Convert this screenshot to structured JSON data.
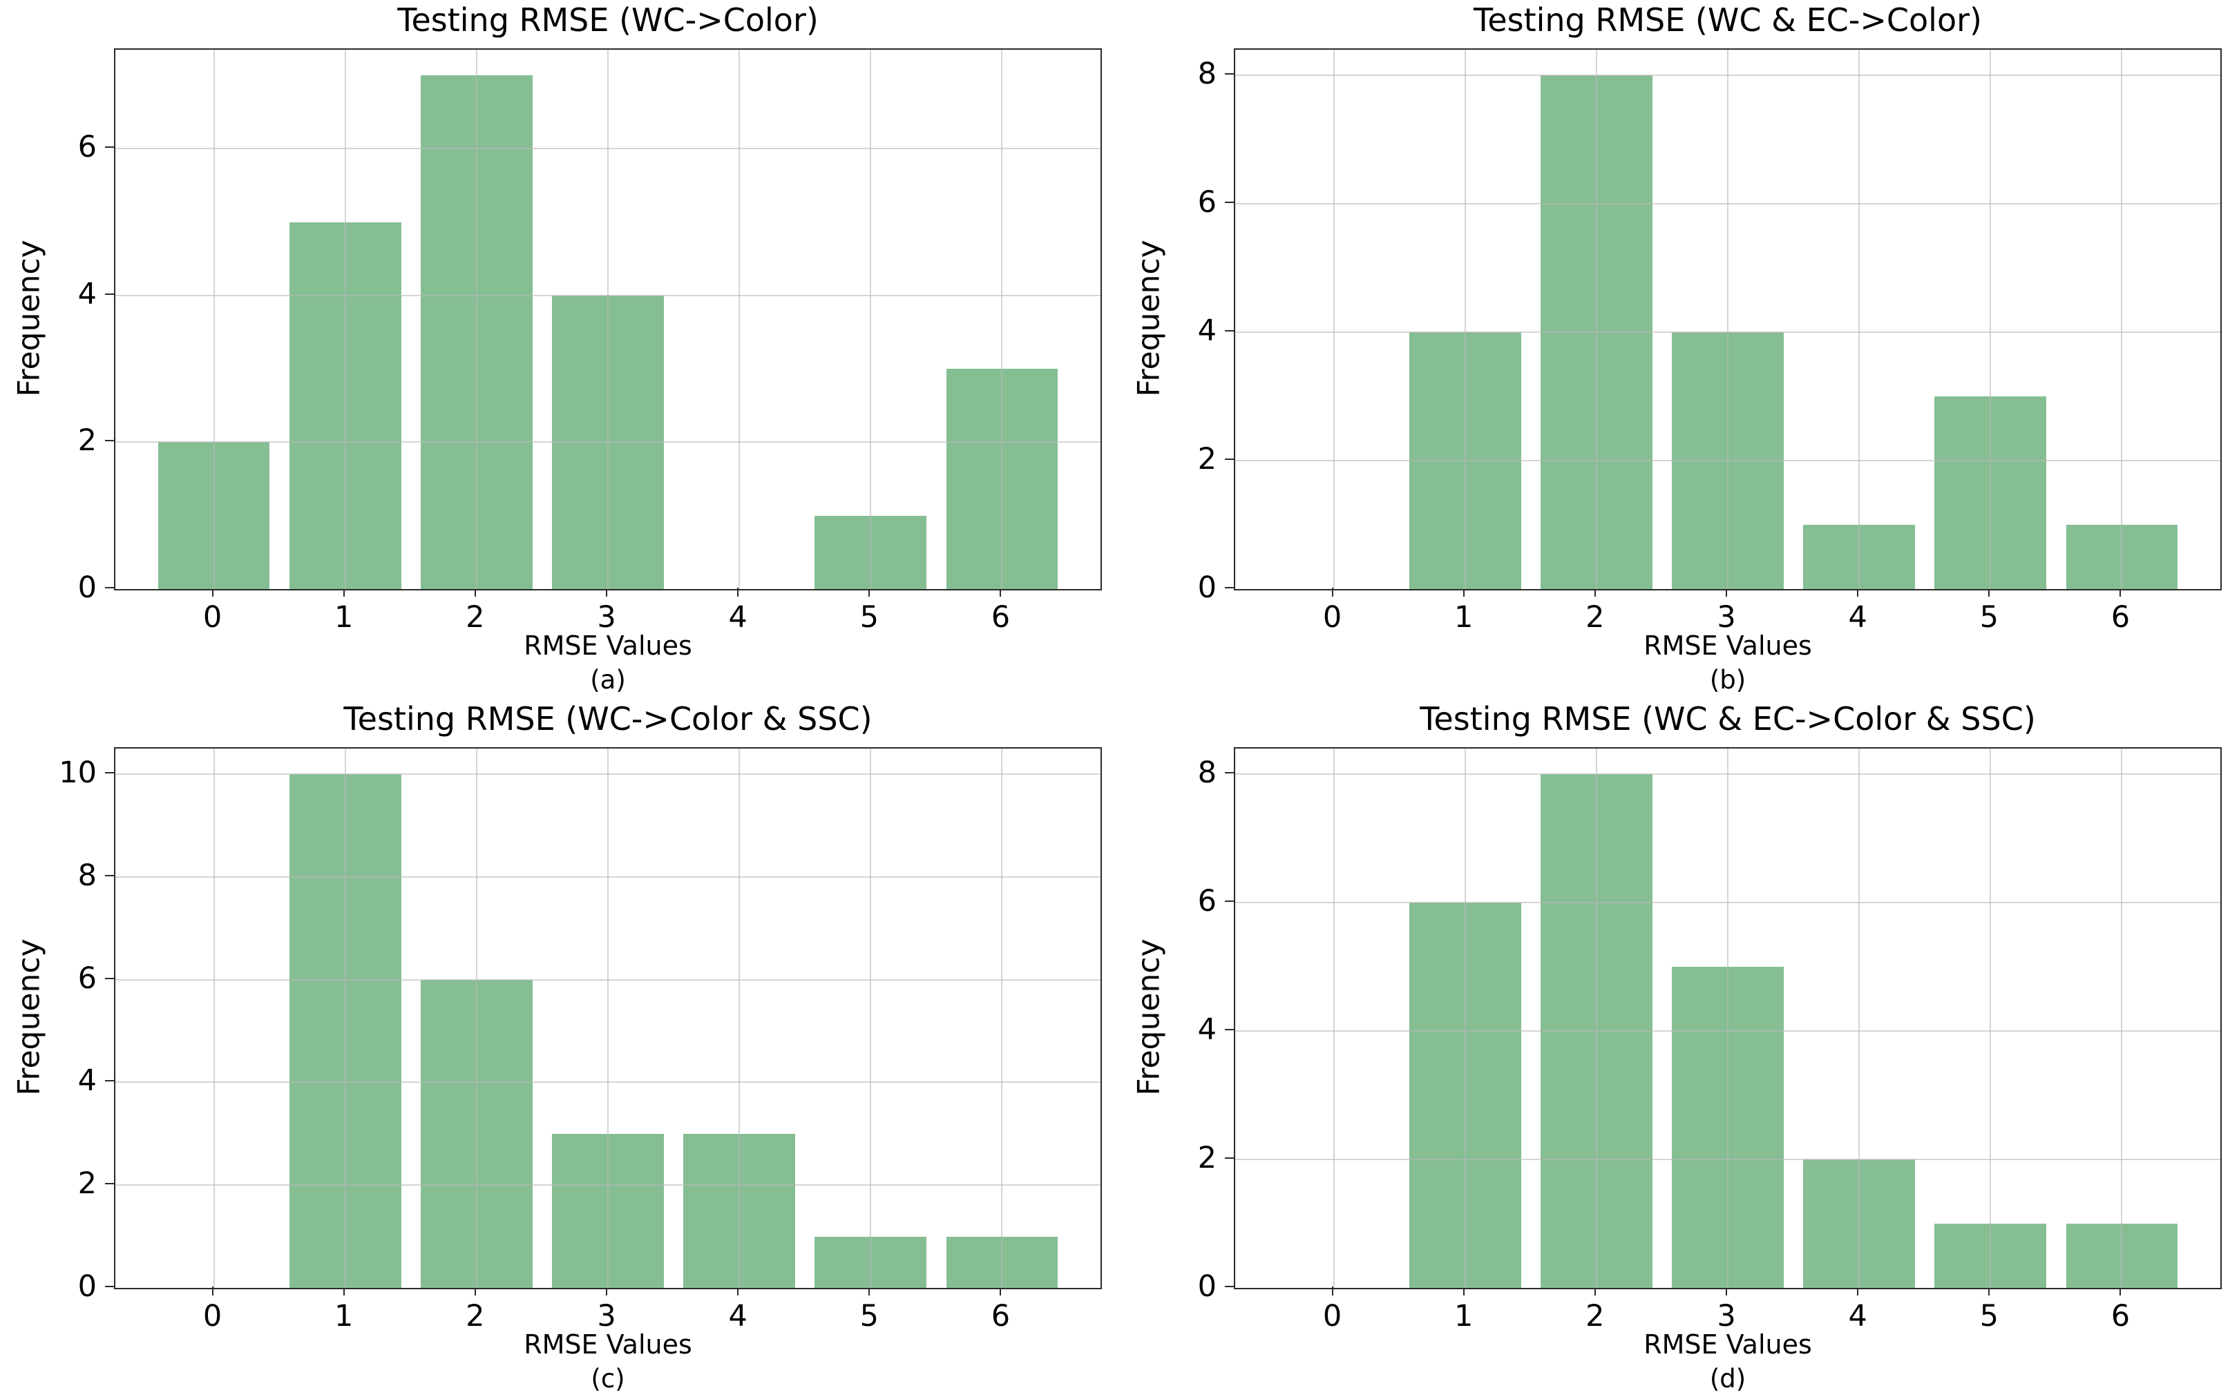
{
  "figure": {
    "background_color": "#ffffff",
    "bar_color": "#85be93",
    "grid_color": "#bbbbbb",
    "spine_color": "#2a2a2a"
  },
  "chart_data": [
    {
      "type": "bar",
      "title": "Testing RMSE (WC->Color)",
      "xlabel": "RMSE Values",
      "ylabel": "Frequency",
      "caption": "(a)",
      "categories": [
        "0",
        "1",
        "2",
        "3",
        "4",
        "5",
        "6"
      ],
      "values": [
        2,
        5,
        7,
        4,
        0,
        1,
        3
      ],
      "yticks": [
        0,
        2,
        4,
        6
      ],
      "ylim": [
        0,
        7.35
      ],
      "xlim": [
        -0.75,
        6.75
      ],
      "bar_width": 0.85,
      "grid": true,
      "legend": "none"
    },
    {
      "type": "bar",
      "title": "Testing RMSE (WC & EC->Color)",
      "xlabel": "RMSE Values",
      "ylabel": "Frequency",
      "caption": "(b)",
      "categories": [
        "0",
        "1",
        "2",
        "3",
        "4",
        "5",
        "6"
      ],
      "values": [
        0,
        4,
        8,
        4,
        1,
        3,
        1
      ],
      "yticks": [
        0,
        2,
        4,
        6,
        8
      ],
      "ylim": [
        0,
        8.4
      ],
      "xlim": [
        -0.75,
        6.75
      ],
      "bar_width": 0.85,
      "grid": true,
      "legend": "none"
    },
    {
      "type": "bar",
      "title": "Testing RMSE (WC->Color & SSC)",
      "xlabel": "RMSE Values",
      "ylabel": "Frequency",
      "caption": "(c)",
      "categories": [
        "0",
        "1",
        "2",
        "3",
        "4",
        "5",
        "6"
      ],
      "values": [
        0,
        10,
        6,
        3,
        3,
        1,
        1
      ],
      "yticks": [
        0,
        2,
        4,
        6,
        8,
        10
      ],
      "ylim": [
        0,
        10.5
      ],
      "xlim": [
        -0.75,
        6.75
      ],
      "bar_width": 0.85,
      "grid": true,
      "legend": "none"
    },
    {
      "type": "bar",
      "title": "Testing RMSE (WC & EC->Color & SSC)",
      "xlabel": "RMSE Values",
      "ylabel": "Frequency",
      "caption": "(d)",
      "categories": [
        "0",
        "1",
        "2",
        "3",
        "4",
        "5",
        "6"
      ],
      "values": [
        0,
        6,
        8,
        5,
        2,
        1,
        1
      ],
      "yticks": [
        0,
        2,
        4,
        6,
        8
      ],
      "ylim": [
        0,
        8.4
      ],
      "xlim": [
        -0.75,
        6.75
      ],
      "bar_width": 0.85,
      "grid": true,
      "legend": "none"
    }
  ]
}
